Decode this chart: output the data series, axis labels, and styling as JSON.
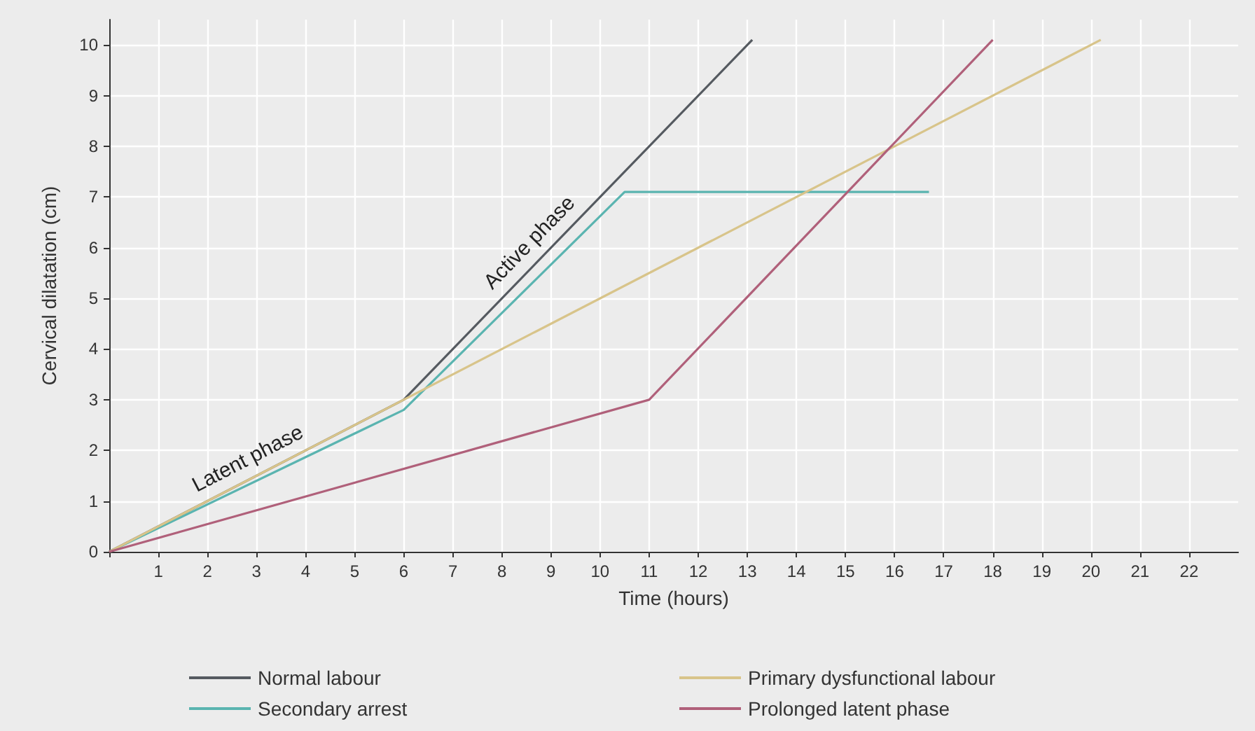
{
  "chart_data": {
    "type": "line",
    "xlabel": "Time (hours)",
    "ylabel": "Cervical dilatation (cm)",
    "xlim": [
      0,
      23
    ],
    "xticks": [
      {
        "value": 0,
        "label": null
      },
      1,
      2,
      3,
      4,
      5,
      6,
      7,
      8,
      9,
      10,
      11,
      12,
      13,
      14,
      15,
      16,
      17,
      18,
      19,
      20,
      21,
      22
    ],
    "ylim": [
      0,
      10.5
    ],
    "yticks": [
      0,
      1,
      2,
      3,
      4,
      5,
      6,
      7,
      8,
      9,
      10
    ],
    "grid": true,
    "legend": "bottom",
    "marker": "none",
    "line_style": "solid",
    "series": [
      {
        "name": "Normal labour",
        "color": "#555a60",
        "x": [
          0,
          6,
          13.1
        ],
        "values": [
          0,
          3,
          10.1
        ]
      },
      {
        "name": "Secondary arrest",
        "color": "#5ab4b0",
        "x": [
          0,
          6,
          10.5,
          16.7
        ],
        "values": [
          0,
          2.8,
          7.1,
          7.1
        ]
      },
      {
        "name": "Primary dysfunctional labour",
        "color": "#d8c48a",
        "x": [
          0,
          20.2
        ],
        "values": [
          0,
          10.1
        ]
      },
      {
        "name": "Prolonged latent phase",
        "color": "#b0607a",
        "x": [
          0,
          11,
          18
        ],
        "values": [
          0,
          3,
          10.1
        ]
      }
    ],
    "annotations": [
      "Latent phase",
      "Active phase"
    ]
  }
}
